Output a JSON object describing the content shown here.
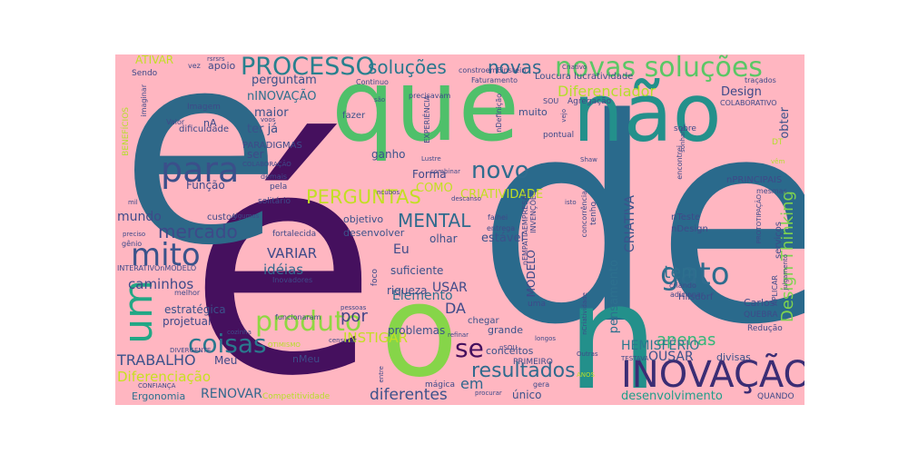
{
  "cloud": {
    "background": "#ffb6c1",
    "words": [
      {
        "text": "de",
        "color": "#2a6a8c"
      },
      {
        "text": "é",
        "color": "#45105e"
      },
      {
        "text": "e",
        "color": "#2d6888"
      },
      {
        "text": "que",
        "color": "#4fc06a"
      },
      {
        "text": "não",
        "color": "#23908b"
      },
      {
        "text": "o",
        "color": "#86d549"
      },
      {
        "text": "n",
        "color": "#23908b"
      },
      {
        "text": "INOVAÇÃO",
        "color": "#3b2d74"
      },
      {
        "text": "para",
        "color": "#3b4f8a"
      },
      {
        "text": "PROCESSO",
        "color": "#27808e"
      },
      {
        "text": "novas soluções",
        "color": "#5ac765"
      },
      {
        "text": "um",
        "color": "#22a785"
      },
      {
        "text": "gato",
        "color": "#2e6c8e"
      },
      {
        "text": "mito",
        "color": "#3a538b"
      },
      {
        "text": "produto",
        "color": "#90d743"
      },
      {
        "text": "novo",
        "color": "#2e6c8e"
      },
      {
        "text": "coisas",
        "color": "#2a788e"
      },
      {
        "text": "se",
        "color": "#45105e"
      },
      {
        "text": "soluções",
        "color": "#2a788e"
      },
      {
        "text": "novas",
        "color": "#2e6c8e"
      },
      {
        "text": "PERGUNTAS",
        "color": "#c2df23"
      },
      {
        "text": "MENTAL",
        "color": "#2f6b8e"
      },
      {
        "text": "Design Thinking",
        "color": "#7fd34e"
      },
      {
        "text": "mercado",
        "color": "#3e4989"
      },
      {
        "text": "resultados",
        "color": "#306a8e"
      },
      {
        "text": "apenas",
        "color": "#35b779"
      },
      {
        "text": "tem",
        "color": "#2d708e"
      },
      {
        "text": "por",
        "color": "#414487"
      },
      {
        "text": "Diferenciador",
        "color": "#b5de2b"
      },
      {
        "text": "diferentes",
        "color": "#3b528b"
      },
      {
        "text": "TRABALHO",
        "color": "#3b528b"
      },
      {
        "text": "Diferenciação",
        "color": "#c8e020"
      },
      {
        "text": "RENOVAR",
        "color": "#31688e"
      },
      {
        "text": "VARIAR",
        "color": "#3e4a89"
      },
      {
        "text": "idéias",
        "color": "#31688e"
      },
      {
        "text": "caminhos",
        "color": "#3e4a89"
      },
      {
        "text": "desenvolvimento",
        "color": "#1f9e89"
      },
      {
        "text": "HEMISFÉRIO",
        "color": "#2a788e"
      },
      {
        "text": "Elemento",
        "color": "#2d708e"
      },
      {
        "text": "CRIATIVA",
        "color": "#3b528b"
      },
      {
        "text": "CRIATIVIDADE",
        "color": "#c2df23"
      },
      {
        "text": "mundo",
        "color": "#3e4a89"
      },
      {
        "text": "perguntam",
        "color": "#3b528b"
      },
      {
        "text": "nINOVAÇÃO",
        "color": "#2d708e"
      },
      {
        "text": "maior",
        "color": "#3b528b"
      },
      {
        "text": "Design",
        "color": "#3e4a89"
      },
      {
        "text": "obter",
        "color": "#3b528b"
      },
      {
        "text": "OUSAR",
        "color": "#3b528b"
      },
      {
        "text": "em",
        "color": "#31688e"
      },
      {
        "text": "DA",
        "color": "#3e4a89"
      },
      {
        "text": "USAR",
        "color": "#3e4a89"
      },
      {
        "text": "Eu",
        "color": "#3e4a89"
      },
      {
        "text": "COMO",
        "color": "#c2df23"
      },
      {
        "text": "estável",
        "color": "#3b528b"
      },
      {
        "text": "pensamento",
        "color": "#2d708e"
      },
      {
        "text": "MODELO",
        "color": "#3e4a89"
      },
      {
        "text": "projetual",
        "color": "#3e4a89"
      },
      {
        "text": "estratégica",
        "color": "#3b528b"
      },
      {
        "text": "Ergonomia",
        "color": "#2d708e"
      },
      {
        "text": "INSTIGAR",
        "color": "#c2df23"
      },
      {
        "text": "riqueza",
        "color": "#3b528b"
      },
      {
        "text": "problemas",
        "color": "#3b528b"
      },
      {
        "text": "suficiente",
        "color": "#3b528b"
      },
      {
        "text": "olhar",
        "color": "#3b528b"
      },
      {
        "text": "ser",
        "color": "#3e4a89"
      },
      {
        "text": "ter já",
        "color": "#3b528b"
      },
      {
        "text": "Função",
        "color": "#3e4a89"
      },
      {
        "text": "ganho",
        "color": "#3b528b"
      },
      {
        "text": "Forma",
        "color": "#3e4a89"
      },
      {
        "text": "apoio",
        "color": "#3e4a89"
      },
      {
        "text": "ATIVAR",
        "color": "#c2df23"
      },
      {
        "text": "nA",
        "color": "#3e4a89"
      },
      {
        "text": "Meu",
        "color": "#3e4a89"
      },
      {
        "text": "nMeu",
        "color": "#3e4a89"
      },
      {
        "text": "único",
        "color": "#3b528b"
      },
      {
        "text": "divisas",
        "color": "#3b528b"
      },
      {
        "text": "desenvolver",
        "color": "#3b528b"
      },
      {
        "text": "objetivo",
        "color": "#3b528b"
      },
      {
        "text": "conceitos",
        "color": "#3b528b"
      },
      {
        "text": "grande",
        "color": "#3b528b"
      },
      {
        "text": "chegar",
        "color": "#3b528b"
      },
      {
        "text": "muito",
        "color": "#3b528b"
      },
      {
        "text": "fazer",
        "color": "#3b528b"
      },
      {
        "text": "Loucura lucratividade",
        "color": "#3b528b"
      },
      {
        "text": "PARADIGMAS",
        "color": "#3e4a89"
      },
      {
        "text": "dificuldade",
        "color": "#3e4a89"
      },
      {
        "text": "custos",
        "color": "#3e4a89"
      },
      {
        "text": "serviços",
        "color": "#3e4a89"
      },
      {
        "text": "nDesign",
        "color": "#3e4a89"
      },
      {
        "text": "nTeste",
        "color": "#3e4a89"
      },
      {
        "text": "nPRINCIPAIS",
        "color": "#3e4a89"
      },
      {
        "text": "Carlos",
        "color": "#3e4a89"
      },
      {
        "text": "Hilsdorf",
        "color": "#3e4a89"
      },
      {
        "text": "Redução",
        "color": "#3e4a89"
      },
      {
        "text": "QUEBRA",
        "color": "#3e4a89"
      },
      {
        "text": "Agregação",
        "color": "#3e4a89"
      },
      {
        "text": "pontual",
        "color": "#3e4a89"
      },
      {
        "text": "Continuo",
        "color": "#3e4a89"
      },
      {
        "text": "Faturamento",
        "color": "#3e4a89"
      },
      {
        "text": "precisavam",
        "color": "#3e4a89"
      },
      {
        "text": "constroemEinstein",
        "color": "#3e4a89"
      },
      {
        "text": "tenho",
        "color": "#3e4a89"
      },
      {
        "text": "PRIMEIRO",
        "color": "#3e4a89"
      },
      {
        "text": "mágica",
        "color": "#3e4a89"
      },
      {
        "text": "entrega",
        "color": "#3e4a89"
      },
      {
        "text": "falhei",
        "color": "#3e4a89"
      },
      {
        "text": "uma",
        "color": "#3e4a89"
      },
      {
        "text": "fortalecida",
        "color": "#3e4a89"
      },
      {
        "text": "funcionaram",
        "color": "#3e4a89"
      },
      {
        "text": "melhor",
        "color": "#3e4a89"
      },
      {
        "text": "solitário",
        "color": "#3e4a89"
      },
      {
        "text": "pela",
        "color": "#3e4a89"
      },
      {
        "text": "demais",
        "color": "#3e4a89"
      },
      {
        "text": "Imagem",
        "color": "#3e4a89"
      },
      {
        "text": "Valor",
        "color": "#3e4a89"
      },
      {
        "text": "Sendo",
        "color": "#3e4a89"
      },
      {
        "text": "vez",
        "color": "#3e4a89"
      },
      {
        "text": "COLABORATIVO",
        "color": "#3e4a89"
      },
      {
        "text": "traçados",
        "color": "#3e4a89"
      },
      {
        "text": "sobre",
        "color": "#3e4a89"
      },
      {
        "text": "encontrei",
        "color": "#3e4a89"
      },
      {
        "text": "mesmas",
        "color": "#3e4a89"
      },
      {
        "text": "APLICAR",
        "color": "#3e4a89"
      },
      {
        "text": "INTERATIVOnMODELO",
        "color": "#3e4a89"
      },
      {
        "text": "Inovadores",
        "color": "#3e4a89"
      },
      {
        "text": "criando",
        "color": "#3e4a89"
      },
      {
        "text": "adicionar",
        "color": "#3e4a89"
      },
      {
        "text": "Outras",
        "color": "#3e4a89"
      },
      {
        "text": "Competitividade",
        "color": "#b5de2b"
      },
      {
        "text": "QUANDO",
        "color": "#3e4a89"
      },
      {
        "text": "BENEFÍCIOS",
        "color": "#b5de2b"
      },
      {
        "text": "imaginar",
        "color": "#3e4a89"
      },
      {
        "text": "DT",
        "color": "#b5de2b"
      },
      {
        "text": "vêm",
        "color": "#b5de2b"
      },
      {
        "text": "nEMPATIAEMPRESAS",
        "color": "#3e4a89"
      },
      {
        "text": "concorrência",
        "color": "#3e4a89"
      },
      {
        "text": "INVENÇÕES",
        "color": "#3e4a89"
      },
      {
        "text": "EXPERIÊNCIA",
        "color": "#3e4a89"
      },
      {
        "text": "nDefinição",
        "color": "#3e4a89"
      },
      {
        "text": "SOU",
        "color": "#3e4a89"
      },
      {
        "text": "CONFIANÇA",
        "color": "#3e4a89"
      },
      {
        "text": "DIVERGENTE",
        "color": "#3e4a89"
      },
      {
        "text": "COLABORAÇÃO",
        "color": "#3e4a89"
      },
      {
        "text": "Algumas",
        "color": "#3e4a89"
      },
      {
        "text": "gênio",
        "color": "#3e4a89"
      },
      {
        "text": "preciso",
        "color": "#3e4a89"
      },
      {
        "text": "mil",
        "color": "#3e4a89"
      },
      {
        "text": "rsrsrs",
        "color": "#3e4a89"
      },
      {
        "text": "Shaw",
        "color": "#3e4a89"
      },
      {
        "text": "isto",
        "color": "#3e4a89"
      },
      {
        "text": "Lustre",
        "color": "#3e4a89"
      },
      {
        "text": "combinar",
        "color": "#3e4a89"
      },
      {
        "text": "ncubos",
        "color": "#3e4a89"
      },
      {
        "text": "refinar",
        "color": "#3e4a89"
      },
      {
        "text": "procurar",
        "color": "#3e4a89"
      },
      {
        "text": "TESTAVA",
        "color": "#3e4a89"
      },
      {
        "text": "ANOS",
        "color": "#b5de2b"
      },
      {
        "text": "longos",
        "color": "#3e4a89"
      },
      {
        "text": "julgamento",
        "color": "#3e4a89"
      },
      {
        "text": "Criativo",
        "color": "#3e4a89"
      },
      {
        "text": "sonham",
        "color": "#3e4a89"
      },
      {
        "text": "vejo",
        "color": "#3e4a89"
      },
      {
        "text": "cozinha",
        "color": "#3e4a89"
      },
      {
        "text": "OTIMISMO",
        "color": "#b5de2b"
      },
      {
        "text": "pessoas",
        "color": "#3e4a89"
      },
      {
        "text": "censurar",
        "color": "#3e4a89"
      },
      {
        "text": "descanso",
        "color": "#3e4a89"
      },
      {
        "text": "nSOU",
        "color": "#3e4a89"
      },
      {
        "text": "foco",
        "color": "#3e4a89"
      },
      {
        "text": "entre",
        "color": "#3e4a89"
      },
      {
        "text": "voos",
        "color": "#3e4a89"
      },
      {
        "text": "são",
        "color": "#3e4a89"
      },
      {
        "text": "PROTOTIPAÇÃO",
        "color": "#3e4a89"
      },
      {
        "text": "gera",
        "color": "#3e4a89"
      },
      {
        "text": "nCriatividade",
        "color": "#3e4a89"
      }
    ]
  }
}
